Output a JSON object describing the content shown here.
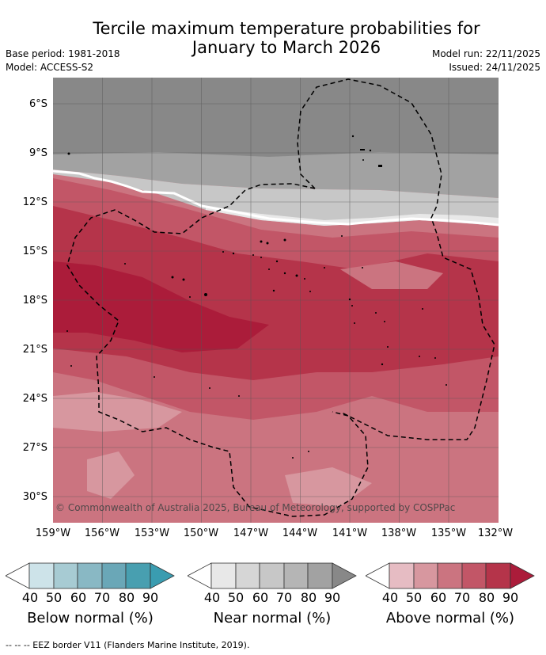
{
  "title_line1": "Tercile maximum temperature probabilities for",
  "title_line2": "January to March 2026",
  "base_period": "Base period: 1981-2018",
  "model": "Model: ACCESS-S2",
  "model_run": "Model run: 22/11/2025",
  "issued": "Issued: 24/11/2025",
  "copyright": "© Commonwealth of Australia 2025, Bureau of Meteorology, supported by COSPPac",
  "lat_labels": [
    "6°S",
    "9°S",
    "12°S",
    "15°S",
    "18°S",
    "21°S",
    "24°S",
    "27°S",
    "30°S"
  ],
  "lon_labels": [
    "159°W",
    "156°W",
    "153°W",
    "150°W",
    "147°W",
    "144°W",
    "141°W",
    "138°W",
    "135°W",
    "132°W"
  ],
  "legends": [
    {
      "title": "Below normal (%)",
      "ticks": [
        "40",
        "50",
        "60",
        "70",
        "80",
        "90"
      ],
      "colors": [
        "#cde3e9",
        "#a7cbd3",
        "#89b8c4",
        "#6aa7b7",
        "#489fb0",
        "#3a9cb0"
      ]
    },
    {
      "title": "Near normal (%)",
      "ticks": [
        "40",
        "50",
        "60",
        "70",
        "80",
        "90"
      ],
      "colors": [
        "#e8e8e8",
        "#d6d6d6",
        "#c7c7c7",
        "#b5b5b5",
        "#a2a2a2",
        "#888888"
      ]
    },
    {
      "title": "Above normal (%)",
      "ticks": [
        "40",
        "50",
        "60",
        "70",
        "80",
        "90"
      ],
      "colors": [
        "#e6bcc3",
        "#d7979f",
        "#cb7480",
        "#c25667",
        "#b5344a",
        "#ab1c3a"
      ]
    }
  ],
  "footnote": "-- -- -- EEZ border V11 (Flanders Marine Institute, 2019)."
}
